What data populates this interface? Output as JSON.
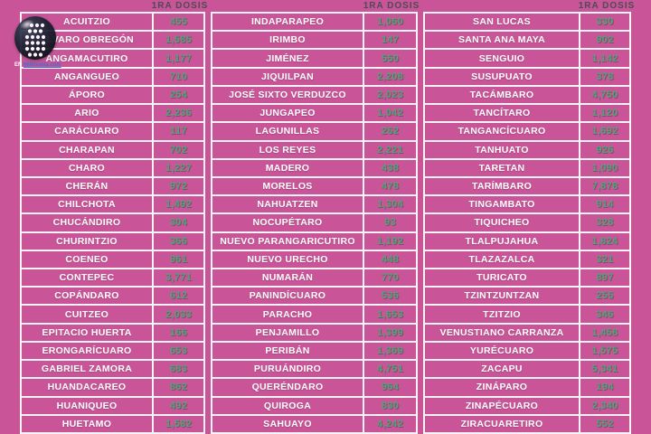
{
  "chart_data": {
    "type": "table",
    "column_header": "1RA DOSIS",
    "columns": [
      {
        "rows": [
          {
            "name": "ACUITZIO",
            "value": "455"
          },
          {
            "name": "ÁLVARO OBREGÓN",
            "value": "1,585"
          },
          {
            "name": "ANGAMACUTIRO",
            "value": "1,177"
          },
          {
            "name": "ANGANGUEO",
            "value": "710"
          },
          {
            "name": "ÁPORO",
            "value": "254"
          },
          {
            "name": "ARIO",
            "value": "2,236"
          },
          {
            "name": "CARÁCUARO",
            "value": "117"
          },
          {
            "name": "CHARAPAN",
            "value": "702"
          },
          {
            "name": "CHARO",
            "value": "1,227"
          },
          {
            "name": "CHERÁN",
            "value": "972"
          },
          {
            "name": "CHILCHOTA",
            "value": "1,492"
          },
          {
            "name": "CHUCÁNDIRO",
            "value": "304"
          },
          {
            "name": "CHURINTZIO",
            "value": "366"
          },
          {
            "name": "COENEO",
            "value": "961"
          },
          {
            "name": "CONTEPEC",
            "value": "3,771"
          },
          {
            "name": "COPÁNDARO",
            "value": "612"
          },
          {
            "name": "CUITZEO",
            "value": "2,033"
          },
          {
            "name": "EPITACIO HUERTA",
            "value": "166"
          },
          {
            "name": "ERONGARÍCUARO",
            "value": "653"
          },
          {
            "name": "GABRIEL ZAMORA",
            "value": "683"
          },
          {
            "name": "HUANDACAREO",
            "value": "862"
          },
          {
            "name": "HUANIQUEO",
            "value": "492"
          },
          {
            "name": "HUETAMO",
            "value": "1,582"
          }
        ]
      },
      {
        "rows": [
          {
            "name": "INDAPARAPEO",
            "value": "1,060"
          },
          {
            "name": "IRIMBO",
            "value": "147"
          },
          {
            "name": "JIMÉNEZ",
            "value": "550"
          },
          {
            "name": "JIQUILPAN",
            "value": "2,208"
          },
          {
            "name": "JOSÉ SIXTO VERDUZCO",
            "value": "2,023"
          },
          {
            "name": "JUNGAPEO",
            "value": "1,042"
          },
          {
            "name": "LAGUNILLAS",
            "value": "262"
          },
          {
            "name": "LOS REYES",
            "value": "2,221"
          },
          {
            "name": "MADERO",
            "value": "438"
          },
          {
            "name": "MORELOS",
            "value": "478"
          },
          {
            "name": "NAHUATZEN",
            "value": "1,304"
          },
          {
            "name": "NOCUPÉTARO",
            "value": "93"
          },
          {
            "name": "NUEVO PARANGARICUTIRO",
            "value": "1,192"
          },
          {
            "name": "NUEVO URECHO",
            "value": "448"
          },
          {
            "name": "NUMARÁN",
            "value": "770"
          },
          {
            "name": "PANINDÍCUARO",
            "value": "536"
          },
          {
            "name": "PARACHO",
            "value": "1,653"
          },
          {
            "name": "PENJAMILLO",
            "value": "1,399"
          },
          {
            "name": "PERIBÁN",
            "value": "1,369"
          },
          {
            "name": "PURUÁNDIRO",
            "value": "4,751"
          },
          {
            "name": "QUERÉNDARO",
            "value": "964"
          },
          {
            "name": "QUIROGA",
            "value": "830"
          },
          {
            "name": "SAHUAYO",
            "value": "4,242"
          }
        ]
      },
      {
        "rows": [
          {
            "name": "SAN LUCAS",
            "value": "330"
          },
          {
            "name": "SANTA ANA MAYA",
            "value": "902"
          },
          {
            "name": "SENGUIO",
            "value": "1,142"
          },
          {
            "name": "SUSUPUATO",
            "value": "378"
          },
          {
            "name": "TACÁMBARO",
            "value": "4,750"
          },
          {
            "name": "TANCÍTARO",
            "value": "1,120"
          },
          {
            "name": "TANGANCÍCUARO",
            "value": "1,692"
          },
          {
            "name": "TANHUATO",
            "value": "926"
          },
          {
            "name": "TARETAN",
            "value": "1,090"
          },
          {
            "name": "TARÍMBARO",
            "value": "7,878"
          },
          {
            "name": "TINGAMBATO",
            "value": "914"
          },
          {
            "name": "TIQUICHEO",
            "value": "328"
          },
          {
            "name": "TLALPUJAHUA",
            "value": "1,824"
          },
          {
            "name": "TLAZAZALCA",
            "value": "321"
          },
          {
            "name": "TURICATO",
            "value": "897"
          },
          {
            "name": "TZINTZUNTZAN",
            "value": "255"
          },
          {
            "name": "TZITZIO",
            "value": "346"
          },
          {
            "name": "VENUSTIANO CARRANZA",
            "value": "1,458"
          },
          {
            "name": "YURÉCUARO",
            "value": "1,575"
          },
          {
            "name": "ZACAPU",
            "value": "5,341"
          },
          {
            "name": "ZINÁPARO",
            "value": "194"
          },
          {
            "name": "ZINAPÉCUARO",
            "value": "2,340"
          },
          {
            "name": "ZIRACUARETIRO",
            "value": "552"
          }
        ]
      }
    ]
  },
  "watermark": {
    "caption_prefix": "EN",
    "caption_link": "MiMorelia.com"
  },
  "colors": {
    "background": "#c95598",
    "grid_lines": "#f8f3f6",
    "municipality_text": "#ffffff",
    "value_text": "#4da577",
    "header_text": "#4a4d55",
    "watermark_link": "#3b6fd4"
  }
}
